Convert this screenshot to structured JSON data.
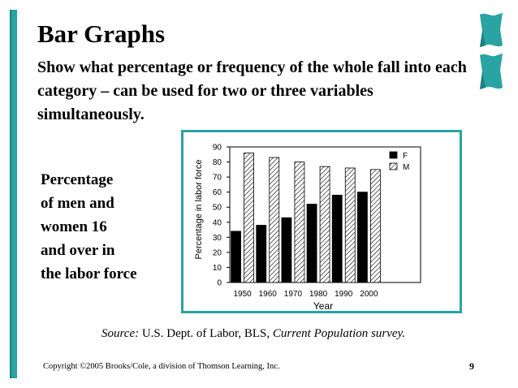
{
  "slide": {
    "title": "Bar Graphs",
    "subtitle": "Show what percentage or frequency of the whole fall into each category – can be used for two or three variables simultaneously.",
    "side_text_lines": [
      "Percentage",
      "of men and",
      "women 16",
      "and over in",
      "the labor force"
    ],
    "source_label": "Source:",
    "source_org": " U.S. Dept. of Labor, BLS, ",
    "source_title": "Current Population survey.",
    "footer": "Copyright ©2005 Brooks/Cole, a division of Thomson Learning, Inc.",
    "page_number": "9"
  },
  "colors": {
    "accent": "#29a3a3",
    "text": "#000000",
    "female_bar": "#000000",
    "male_bar_hatch": "#000000"
  },
  "chart_data": {
    "type": "bar",
    "title": "",
    "xlabel": "Year",
    "ylabel": "Percentage in labor force",
    "categories": [
      "1950",
      "1960",
      "1970",
      "1980",
      "1990",
      "2000"
    ],
    "series": [
      {
        "name": "F",
        "values": [
          34,
          38,
          43,
          52,
          58,
          60
        ]
      },
      {
        "name": "M",
        "values": [
          86,
          83,
          80,
          77,
          76,
          75
        ]
      }
    ],
    "ylim": [
      0,
      90
    ],
    "yticks": [
      0,
      10,
      20,
      30,
      40,
      50,
      60,
      70,
      80,
      90
    ],
    "grid": false,
    "legend_position": "top-right"
  }
}
